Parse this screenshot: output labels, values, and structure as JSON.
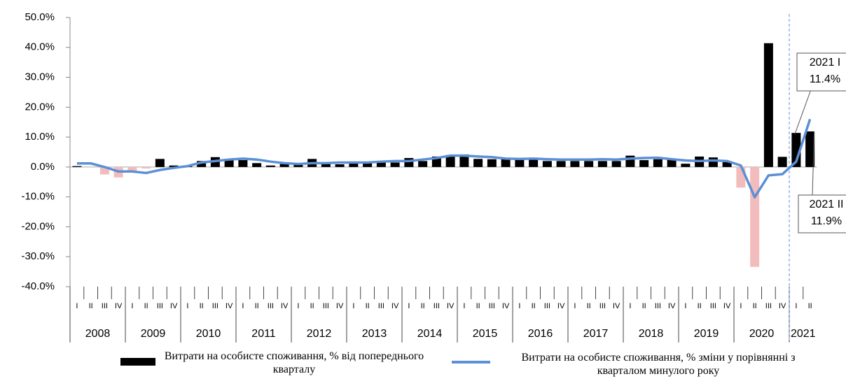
{
  "chart_data": {
    "type": "bar_line",
    "categories": [
      "I",
      "II",
      "III",
      "IV",
      "I",
      "II",
      "III",
      "IV",
      "I",
      "II",
      "III",
      "IV",
      "I",
      "II",
      "III",
      "IV",
      "I",
      "II",
      "III",
      "IV",
      "I",
      "II",
      "III",
      "IV",
      "I",
      "II",
      "III",
      "IV",
      "I",
      "II",
      "III",
      "IV",
      "I",
      "II",
      "III",
      "IV",
      "I",
      "II",
      "III",
      "IV",
      "I",
      "II",
      "III",
      "IV",
      "I",
      "II",
      "III",
      "IV",
      "I",
      "II",
      "III",
      "IV",
      "I",
      "II"
    ],
    "years": [
      "2008",
      "2009",
      "2010",
      "2011",
      "2012",
      "2013",
      "2014",
      "2015",
      "2016",
      "2017",
      "2018",
      "2019",
      "2020",
      "2021"
    ],
    "series": [
      {
        "name": "Витрати на особисте споживання, % від попереднього кварталу",
        "type": "bar",
        "color": "#000000",
        "negative_color": "#f2bcbc",
        "values": [
          0.3,
          0.0,
          -2.5,
          -3.5,
          -1.5,
          -0.5,
          2.7,
          0.5,
          0.5,
          2.0,
          3.3,
          2.7,
          2.3,
          1.3,
          0.5,
          1.0,
          0.7,
          2.7,
          1.0,
          0.9,
          1.2,
          1.8,
          1.5,
          1.5,
          3.0,
          2.0,
          3.5,
          4.0,
          4.2,
          2.7,
          2.6,
          2.6,
          2.4,
          2.6,
          2.0,
          2.0,
          2.0,
          2.0,
          2.0,
          2.0,
          3.8,
          2.3,
          2.6,
          2.5,
          1.1,
          3.5,
          3.2,
          1.6,
          -6.9,
          -33.4,
          41.4,
          3.4,
          11.4,
          11.9
        ]
      },
      {
        "name": "Витрати на особисте споживання, % зміни у порівнянні з кварталом минулого року",
        "type": "line",
        "color": "#5b8fd6",
        "values": [
          1.2,
          1.2,
          0.0,
          -1.5,
          -1.5,
          -2.0,
          -1.0,
          -0.3,
          0.3,
          1.5,
          2.0,
          2.5,
          2.8,
          2.5,
          1.8,
          1.3,
          1.0,
          1.3,
          1.3,
          1.5,
          1.5,
          1.5,
          1.8,
          2.0,
          2.0,
          2.5,
          3.0,
          3.8,
          3.8,
          3.5,
          3.3,
          2.8,
          2.7,
          2.8,
          2.6,
          2.5,
          2.5,
          2.5,
          2.6,
          2.5,
          2.8,
          3.0,
          3.1,
          2.6,
          2.2,
          2.0,
          2.2,
          2.0,
          0.5,
          -10.1,
          -2.8,
          -2.4,
          1.8,
          16.0
        ]
      }
    ],
    "ylim": [
      -40,
      50
    ],
    "yticks": [
      {
        "value": -40,
        "label": "-40.0%"
      },
      {
        "value": -30,
        "label": "-30.0%"
      },
      {
        "value": -20,
        "label": "-20.0%"
      },
      {
        "value": -10,
        "label": "-10.0%"
      },
      {
        "value": 0,
        "label": "0.0%"
      },
      {
        "value": 10,
        "label": "10.0%"
      },
      {
        "value": 20,
        "label": "20.0%"
      },
      {
        "value": 30,
        "label": "30.0%"
      },
      {
        "value": 40,
        "label": "40.0%"
      },
      {
        "value": 50,
        "label": "50.0%"
      }
    ],
    "annotations": [
      {
        "lines": [
          "2021 I",
          "11.4%"
        ]
      },
      {
        "lines": [
          "2021 II",
          "11.9%"
        ]
      }
    ]
  }
}
